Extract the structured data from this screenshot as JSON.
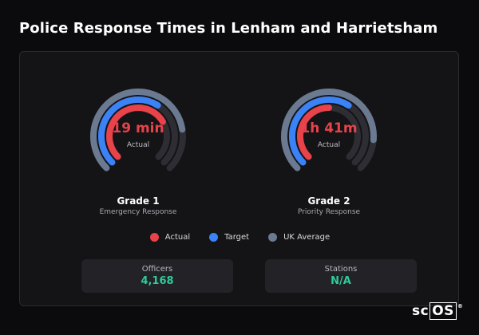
{
  "header": {
    "title": "Police Response Times in Lenham and Harrietsham"
  },
  "colors": {
    "actual": "#e8424a",
    "target": "#3b82f6",
    "uk_average": "#6b7a90",
    "track": "#2d2d33",
    "stat_value": "#2ecc9a"
  },
  "gauges": [
    {
      "value": "19 min",
      "sublabel": "Actual",
      "grade": "Grade 1",
      "grade_description": "Emergency Response",
      "fill": {
        "actual": 0.72,
        "target": 0.62,
        "uk_average": 0.8
      }
    },
    {
      "value": "1h 41m",
      "sublabel": "Actual",
      "grade": "Grade 2",
      "grade_description": "Priority Response",
      "fill": {
        "actual": 0.5,
        "target": 0.62,
        "uk_average": 0.85
      }
    }
  ],
  "legend": [
    {
      "label": "Actual",
      "color": "#e8424a"
    },
    {
      "label": "Target",
      "color": "#3b82f6"
    },
    {
      "label": "UK Average",
      "color": "#6b7a90"
    }
  ],
  "stats": [
    {
      "label": "Officers",
      "value": "4,168"
    },
    {
      "label": "Stations",
      "value": "N/A"
    }
  ],
  "logo": {
    "text_left": "sc",
    "text_boxed": "OS",
    "mark": "®"
  }
}
